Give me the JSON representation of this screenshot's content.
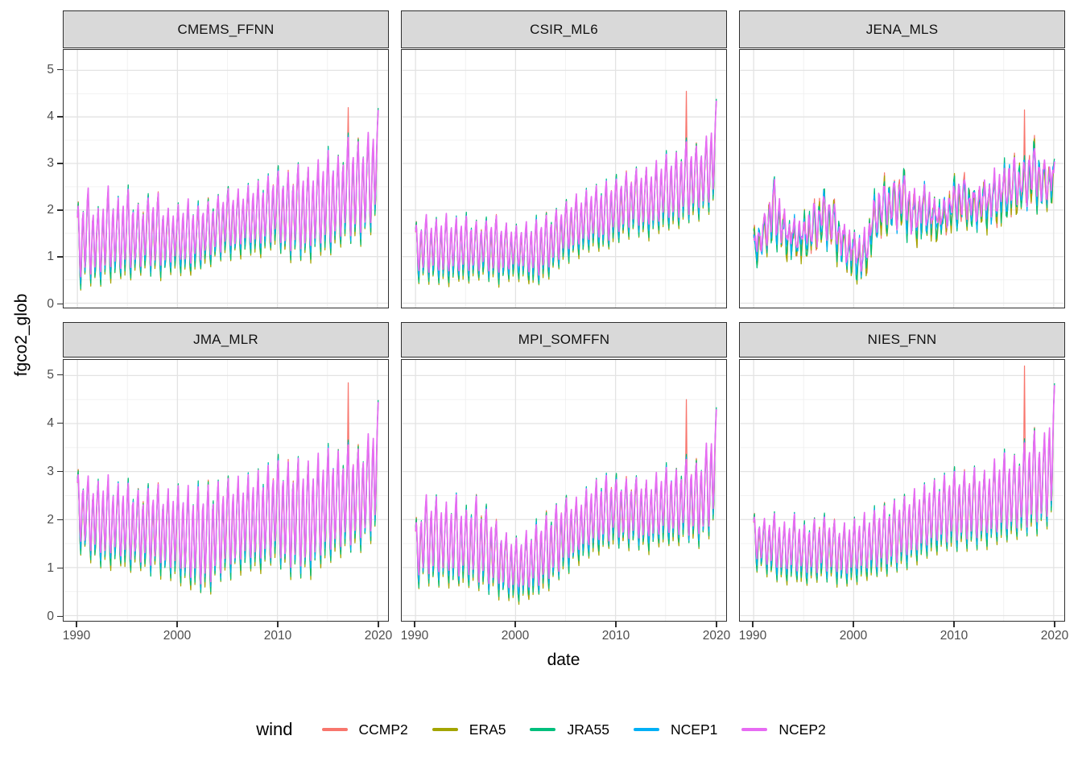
{
  "chart_data": {
    "type": "line",
    "title": "",
    "xlabel": "date",
    "ylabel": "fgco2_glob",
    "legend_title": "wind",
    "x_ticks": [
      1990,
      2000,
      2010,
      2020
    ],
    "y_ticks": [
      0,
      1,
      2,
      3,
      4,
      5
    ],
    "x_minor_ticks": [
      1995,
      2005,
      2015
    ],
    "y_minor_ticks": [
      0.5,
      1.5,
      2.5,
      3.5,
      4.5
    ],
    "x_range": [
      1988.6,
      2021.0
    ],
    "y_range": [
      -0.1,
      5.45
    ],
    "grid": true,
    "legend_position": "bottom",
    "year_start": 1990,
    "year_end": 2020,
    "seasonal_shape_monthly": [
      0.85,
      1.0,
      0.6,
      0.15,
      0.0,
      0.3,
      0.7,
      0.8,
      0.45,
      0.1,
      0.25,
      0.6
    ],
    "series": [
      {
        "name": "CCMP2",
        "color": "#F8766D",
        "trough_offset": 0.02,
        "peak_offset": 0.0
      },
      {
        "name": "ERA5",
        "color": "#A3A500",
        "trough_offset": -0.05,
        "peak_offset": 0.0
      },
      {
        "name": "JRA55",
        "color": "#00BF7D",
        "trough_offset": 0.0,
        "peak_offset": 0.035
      },
      {
        "name": "NCEP1",
        "color": "#00B0F6",
        "trough_offset": 0.1,
        "peak_offset": 0.0
      },
      {
        "name": "NCEP2",
        "color": "#E76BF3",
        "trough_offset": 0.22,
        "peak_offset": 0.0
      }
    ],
    "facets": [
      {
        "name": "CMEMS_FFNN",
        "annual_max": [
          2.1,
          2.5,
          2.0,
          2.5,
          2.2,
          2.5,
          2.1,
          2.3,
          2.4,
          2.0,
          2.1,
          2.2,
          2.1,
          2.2,
          2.3,
          2.5,
          2.4,
          2.5,
          2.6,
          2.7,
          2.9,
          2.8,
          3.0,
          2.9,
          3.0,
          3.3,
          3.1,
          3.6,
          3.5,
          3.6,
          4.15
        ],
        "annual_min": [
          0.3,
          0.45,
          0.4,
          0.5,
          0.55,
          0.5,
          0.6,
          0.65,
          0.55,
          0.65,
          0.7,
          0.6,
          0.7,
          0.8,
          0.9,
          1.0,
          1.0,
          1.1,
          1.0,
          1.1,
          1.2,
          0.9,
          1.0,
          0.9,
          1.1,
          1.0,
          1.2,
          1.3,
          1.25,
          1.4,
          1.8
        ],
        "ccmp2_spike_2017": 4.2,
        "irregularity": 0.06
      },
      {
        "name": "CSIR_ML6",
        "annual_max": [
          1.7,
          1.9,
          1.8,
          1.9,
          1.8,
          1.9,
          1.75,
          1.8,
          1.9,
          1.7,
          1.65,
          1.7,
          1.8,
          1.9,
          2.0,
          2.2,
          2.3,
          2.4,
          2.5,
          2.6,
          2.7,
          2.8,
          2.9,
          2.9,
          3.0,
          3.2,
          3.2,
          3.5,
          3.4,
          3.5,
          4.35
        ],
        "annual_min": [
          0.5,
          0.45,
          0.5,
          0.4,
          0.5,
          0.45,
          0.5,
          0.55,
          0.4,
          0.5,
          0.55,
          0.5,
          0.35,
          0.5,
          0.7,
          0.9,
          1.0,
          1.1,
          1.2,
          1.1,
          1.3,
          1.4,
          1.5,
          1.4,
          1.5,
          1.6,
          1.6,
          1.7,
          1.8,
          1.9,
          2.1
        ],
        "ccmp2_spike_2017": 4.55,
        "irregularity": 0.05
      },
      {
        "name": "JENA_MLS",
        "annual_max": [
          1.5,
          1.8,
          2.75,
          1.9,
          1.7,
          1.8,
          2.1,
          2.4,
          2.2,
          1.6,
          1.5,
          1.4,
          2.2,
          2.6,
          2.6,
          2.9,
          2.3,
          2.5,
          2.2,
          2.1,
          2.6,
          2.7,
          2.4,
          2.6,
          2.7,
          2.9,
          3.1,
          3.0,
          3.5,
          3.0,
          3.05
        ],
        "annual_min": [
          0.85,
          1.0,
          1.3,
          1.1,
          1.0,
          1.0,
          1.05,
          1.3,
          1.1,
          0.8,
          0.6,
          0.45,
          1.3,
          1.5,
          1.5,
          1.6,
          1.3,
          1.5,
          1.4,
          1.5,
          1.6,
          1.7,
          1.6,
          1.7,
          1.7,
          1.8,
          1.9,
          2.0,
          2.1,
          2.0,
          2.2
        ],
        "ccmp2_spike_2017": 4.15,
        "irregularity": 0.2
      },
      {
        "name": "JMA_MLR",
        "annual_max": [
          3.0,
          2.9,
          2.8,
          2.9,
          2.7,
          2.8,
          2.6,
          2.7,
          2.75,
          2.6,
          2.7,
          2.65,
          2.7,
          2.75,
          2.8,
          2.9,
          2.85,
          2.9,
          3.0,
          3.1,
          3.3,
          3.2,
          3.3,
          3.2,
          3.3,
          3.5,
          3.4,
          3.6,
          3.5,
          3.7,
          4.45
        ],
        "annual_min": [
          1.4,
          1.2,
          1.1,
          1.0,
          1.1,
          0.9,
          1.0,
          0.85,
          0.9,
          0.8,
          0.75,
          0.6,
          0.5,
          0.4,
          0.7,
          0.8,
          0.9,
          1.0,
          0.9,
          1.0,
          1.1,
          0.8,
          0.85,
          0.8,
          1.0,
          1.1,
          1.2,
          1.3,
          1.35,
          1.5,
          1.7
        ],
        "ccmp2_spike_2017": 4.85,
        "irregularity": 0.07
      },
      {
        "name": "MPI_SOMFFN",
        "annual_max": [
          1.95,
          2.5,
          2.5,
          2.3,
          2.5,
          2.2,
          2.5,
          2.3,
          2.0,
          1.7,
          1.6,
          1.7,
          1.9,
          2.1,
          2.3,
          2.5,
          2.4,
          2.6,
          2.8,
          2.9,
          2.9,
          2.85,
          2.9,
          2.8,
          2.9,
          3.1,
          3.0,
          3.3,
          3.2,
          3.5,
          4.3
        ],
        "annual_min": [
          0.6,
          0.7,
          0.65,
          0.7,
          0.6,
          0.65,
          0.55,
          0.5,
          0.45,
          0.4,
          0.3,
          0.35,
          0.4,
          0.5,
          0.7,
          0.9,
          1.1,
          1.2,
          1.3,
          1.35,
          1.45,
          1.4,
          1.45,
          1.35,
          1.45,
          1.5,
          1.45,
          1.55,
          1.45,
          1.55,
          1.9
        ],
        "ccmp2_spike_2017": 4.5,
        "irregularity": 0.07
      },
      {
        "name": "NIES_FNN",
        "annual_max": [
          2.1,
          2.0,
          2.15,
          1.9,
          2.1,
          1.9,
          2.0,
          2.1,
          2.0,
          1.9,
          2.0,
          2.1,
          2.2,
          2.3,
          2.4,
          2.5,
          2.6,
          2.7,
          2.8,
          2.9,
          3.05,
          3.0,
          3.1,
          3.0,
          3.2,
          3.4,
          3.3,
          3.6,
          3.9,
          3.7,
          4.8
        ],
        "annual_min": [
          1.0,
          0.9,
          0.8,
          0.7,
          0.75,
          0.65,
          0.7,
          0.75,
          0.7,
          0.65,
          0.7,
          0.75,
          0.8,
          0.85,
          0.9,
          1.0,
          1.1,
          1.2,
          1.3,
          1.35,
          1.35,
          1.4,
          1.4,
          1.45,
          1.5,
          1.55,
          1.6,
          1.65,
          1.7,
          1.8,
          2.0
        ],
        "ccmp2_spike_2017": 5.2,
        "irregularity": 0.05
      }
    ]
  }
}
